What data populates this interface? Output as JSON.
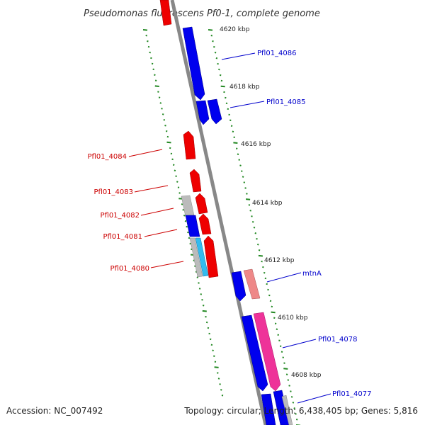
{
  "title": "Pseudomonas fluorescens Pf0-1, complete genome",
  "colors": {
    "forward": "#0000ee",
    "reverse": "#ee0000",
    "grey": "#bbbbbb",
    "cyan": "#33bbee",
    "salmon": "#ee8888",
    "pink": "#ee3399",
    "backbone": "#888888",
    "tick": "#228822",
    "label_forward": "#0000cc",
    "label_reverse": "#cc0000"
  },
  "ruler_labels": [
    "4620 kbp",
    "4618 kbp",
    "4616 kbp",
    "4614 kbp",
    "4612 kbp",
    "4610 kbp",
    "4608 kbp"
  ],
  "gene_labels": {
    "forward": [
      "Pfl01_4086",
      "Pfl01_4085",
      "mtnA",
      "Pfl01_4078",
      "Pfl01_4077"
    ],
    "reverse": [
      "Pfl01_4084",
      "Pfl01_4083",
      "Pfl01_4082",
      "Pfl01_4081",
      "Pfl01_4080"
    ]
  },
  "footer": {
    "accession": "Accession: NC_007492",
    "summary": "Topology: circular; Length: 6,438,405 bp; Genes: 5,816"
  }
}
